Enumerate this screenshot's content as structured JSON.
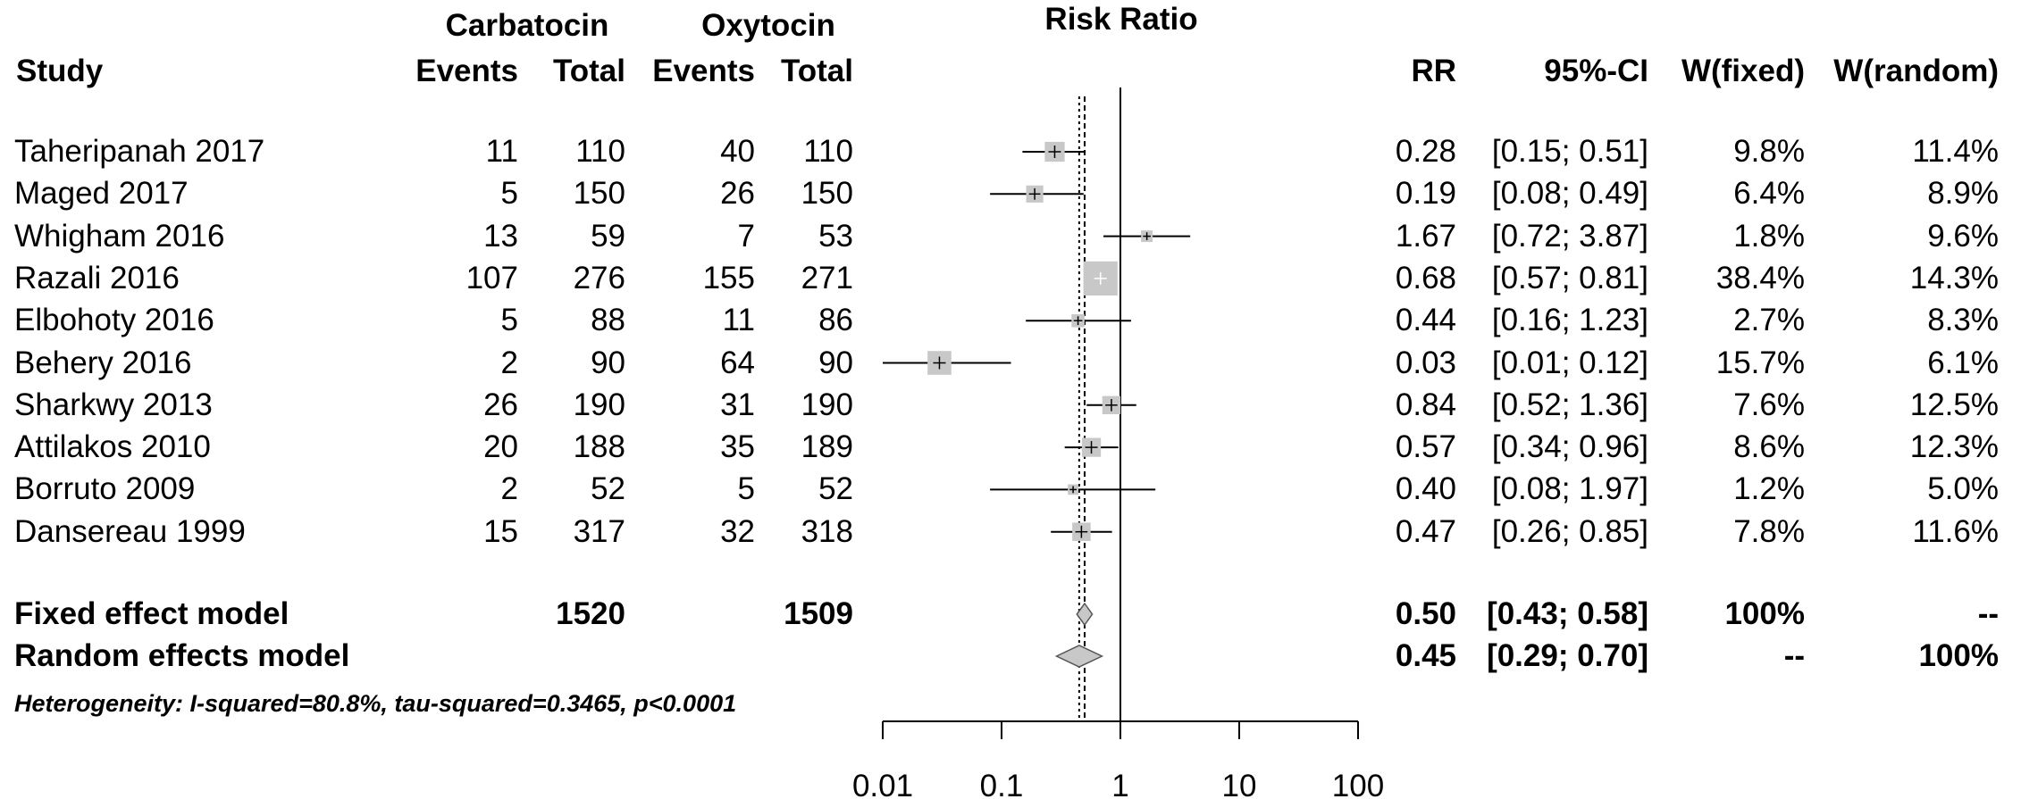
{
  "header": {
    "group1": "Carbatocin",
    "group2": "Oxytocin",
    "plot_title": "Risk Ratio",
    "study": "Study",
    "events": "Events",
    "total": "Total",
    "rr": "RR",
    "ci": "95%-CI",
    "w_fixed": "W(fixed)",
    "w_random": "W(random)"
  },
  "chart_data": {
    "type": "forest",
    "title": "Risk Ratio",
    "x_scale": "log",
    "xlim": [
      0.01,
      100
    ],
    "x_ticks": [
      "0.01",
      "0.1",
      "1",
      "10",
      "100"
    ],
    "reference_line": 1,
    "fixed_line": 0.5,
    "random_line": 0.45,
    "studies": [
      {
        "name": "Taheripanah 2017",
        "e1": "11",
        "n1": "110",
        "e2": "40",
        "n2": "110",
        "rr": 0.28,
        "lo": 0.15,
        "hi": 0.51,
        "rr_txt": "0.28",
        "ci_txt": "[0.15; 0.51]",
        "wf": "9.8%",
        "wr": "11.4%",
        "weight": 9.8
      },
      {
        "name": "Maged 2017",
        "e1": "5",
        "n1": "150",
        "e2": "26",
        "n2": "150",
        "rr": 0.19,
        "lo": 0.08,
        "hi": 0.49,
        "rr_txt": "0.19",
        "ci_txt": "[0.08; 0.49]",
        "wf": "6.4%",
        "wr": "8.9%",
        "weight": 6.4
      },
      {
        "name": "Whigham 2016",
        "e1": "13",
        "n1": "59",
        "e2": "7",
        "n2": "53",
        "rr": 1.67,
        "lo": 0.72,
        "hi": 3.87,
        "rr_txt": "1.67",
        "ci_txt": "[0.72; 3.87]",
        "wf": "1.8%",
        "wr": "9.6%",
        "weight": 1.8
      },
      {
        "name": "Razali 2016",
        "e1": "107",
        "n1": "276",
        "e2": "155",
        "n2": "271",
        "rr": 0.68,
        "lo": 0.57,
        "hi": 0.81,
        "rr_txt": "0.68",
        "ci_txt": "[0.57; 0.81]",
        "wf": "38.4%",
        "wr": "14.3%",
        "weight": 38.4
      },
      {
        "name": "Elbohoty 2016",
        "e1": "5",
        "n1": "88",
        "e2": "11",
        "n2": "86",
        "rr": 0.44,
        "lo": 0.16,
        "hi": 1.23,
        "rr_txt": "0.44",
        "ci_txt": "[0.16; 1.23]",
        "wf": "2.7%",
        "wr": "8.3%",
        "weight": 2.7
      },
      {
        "name": "Behery 2016",
        "e1": "2",
        "n1": "90",
        "e2": "64",
        "n2": "90",
        "rr": 0.03,
        "lo": 0.01,
        "hi": 0.12,
        "rr_txt": "0.03",
        "ci_txt": "[0.01; 0.12]",
        "wf": "15.7%",
        "wr": "6.1%",
        "weight": 15.7
      },
      {
        "name": "Sharkwy 2013",
        "e1": "26",
        "n1": "190",
        "e2": "31",
        "n2": "190",
        "rr": 0.84,
        "lo": 0.52,
        "hi": 1.36,
        "rr_txt": "0.84",
        "ci_txt": "[0.52; 1.36]",
        "wf": "7.6%",
        "wr": "12.5%",
        "weight": 7.6
      },
      {
        "name": "Attilakos 2010",
        "e1": "20",
        "n1": "188",
        "e2": "35",
        "n2": "189",
        "rr": 0.57,
        "lo": 0.34,
        "hi": 0.96,
        "rr_txt": "0.57",
        "ci_txt": "[0.34; 0.96]",
        "wf": "8.6%",
        "wr": "12.3%",
        "weight": 8.6
      },
      {
        "name": "Borruto 2009",
        "e1": "2",
        "n1": "52",
        "e2": "5",
        "n2": "52",
        "rr": 0.4,
        "lo": 0.08,
        "hi": 1.97,
        "rr_txt": "0.40",
        "ci_txt": "[0.08; 1.97]",
        "wf": "1.2%",
        "wr": "5.0%",
        "weight": 1.2
      },
      {
        "name": "Dansereau 1999",
        "e1": "15",
        "n1": "317",
        "e2": "32",
        "n2": "318",
        "rr": 0.47,
        "lo": 0.26,
        "hi": 0.85,
        "rr_txt": "0.47",
        "ci_txt": "[0.26; 0.85]",
        "wf": "7.8%",
        "wr": "11.6%",
        "weight": 7.8
      }
    ],
    "pooled": [
      {
        "name": "Fixed effect model",
        "n1": "1520",
        "n2": "1509",
        "rr": 0.5,
        "lo": 0.43,
        "hi": 0.58,
        "rr_txt": "0.50",
        "ci_txt": "[0.43; 0.58]",
        "wf": "100%",
        "wr": "--"
      },
      {
        "name": "Random effects model",
        "n1": "",
        "n2": "",
        "rr": 0.45,
        "lo": 0.29,
        "hi": 0.7,
        "rr_txt": "0.45",
        "ci_txt": "[0.29; 0.70]",
        "wf": "--",
        "wr": "100%"
      }
    ],
    "heterogeneity": "Heterogeneity: I-squared=80.8%, tau-squared=0.3465, p<0.0001"
  }
}
